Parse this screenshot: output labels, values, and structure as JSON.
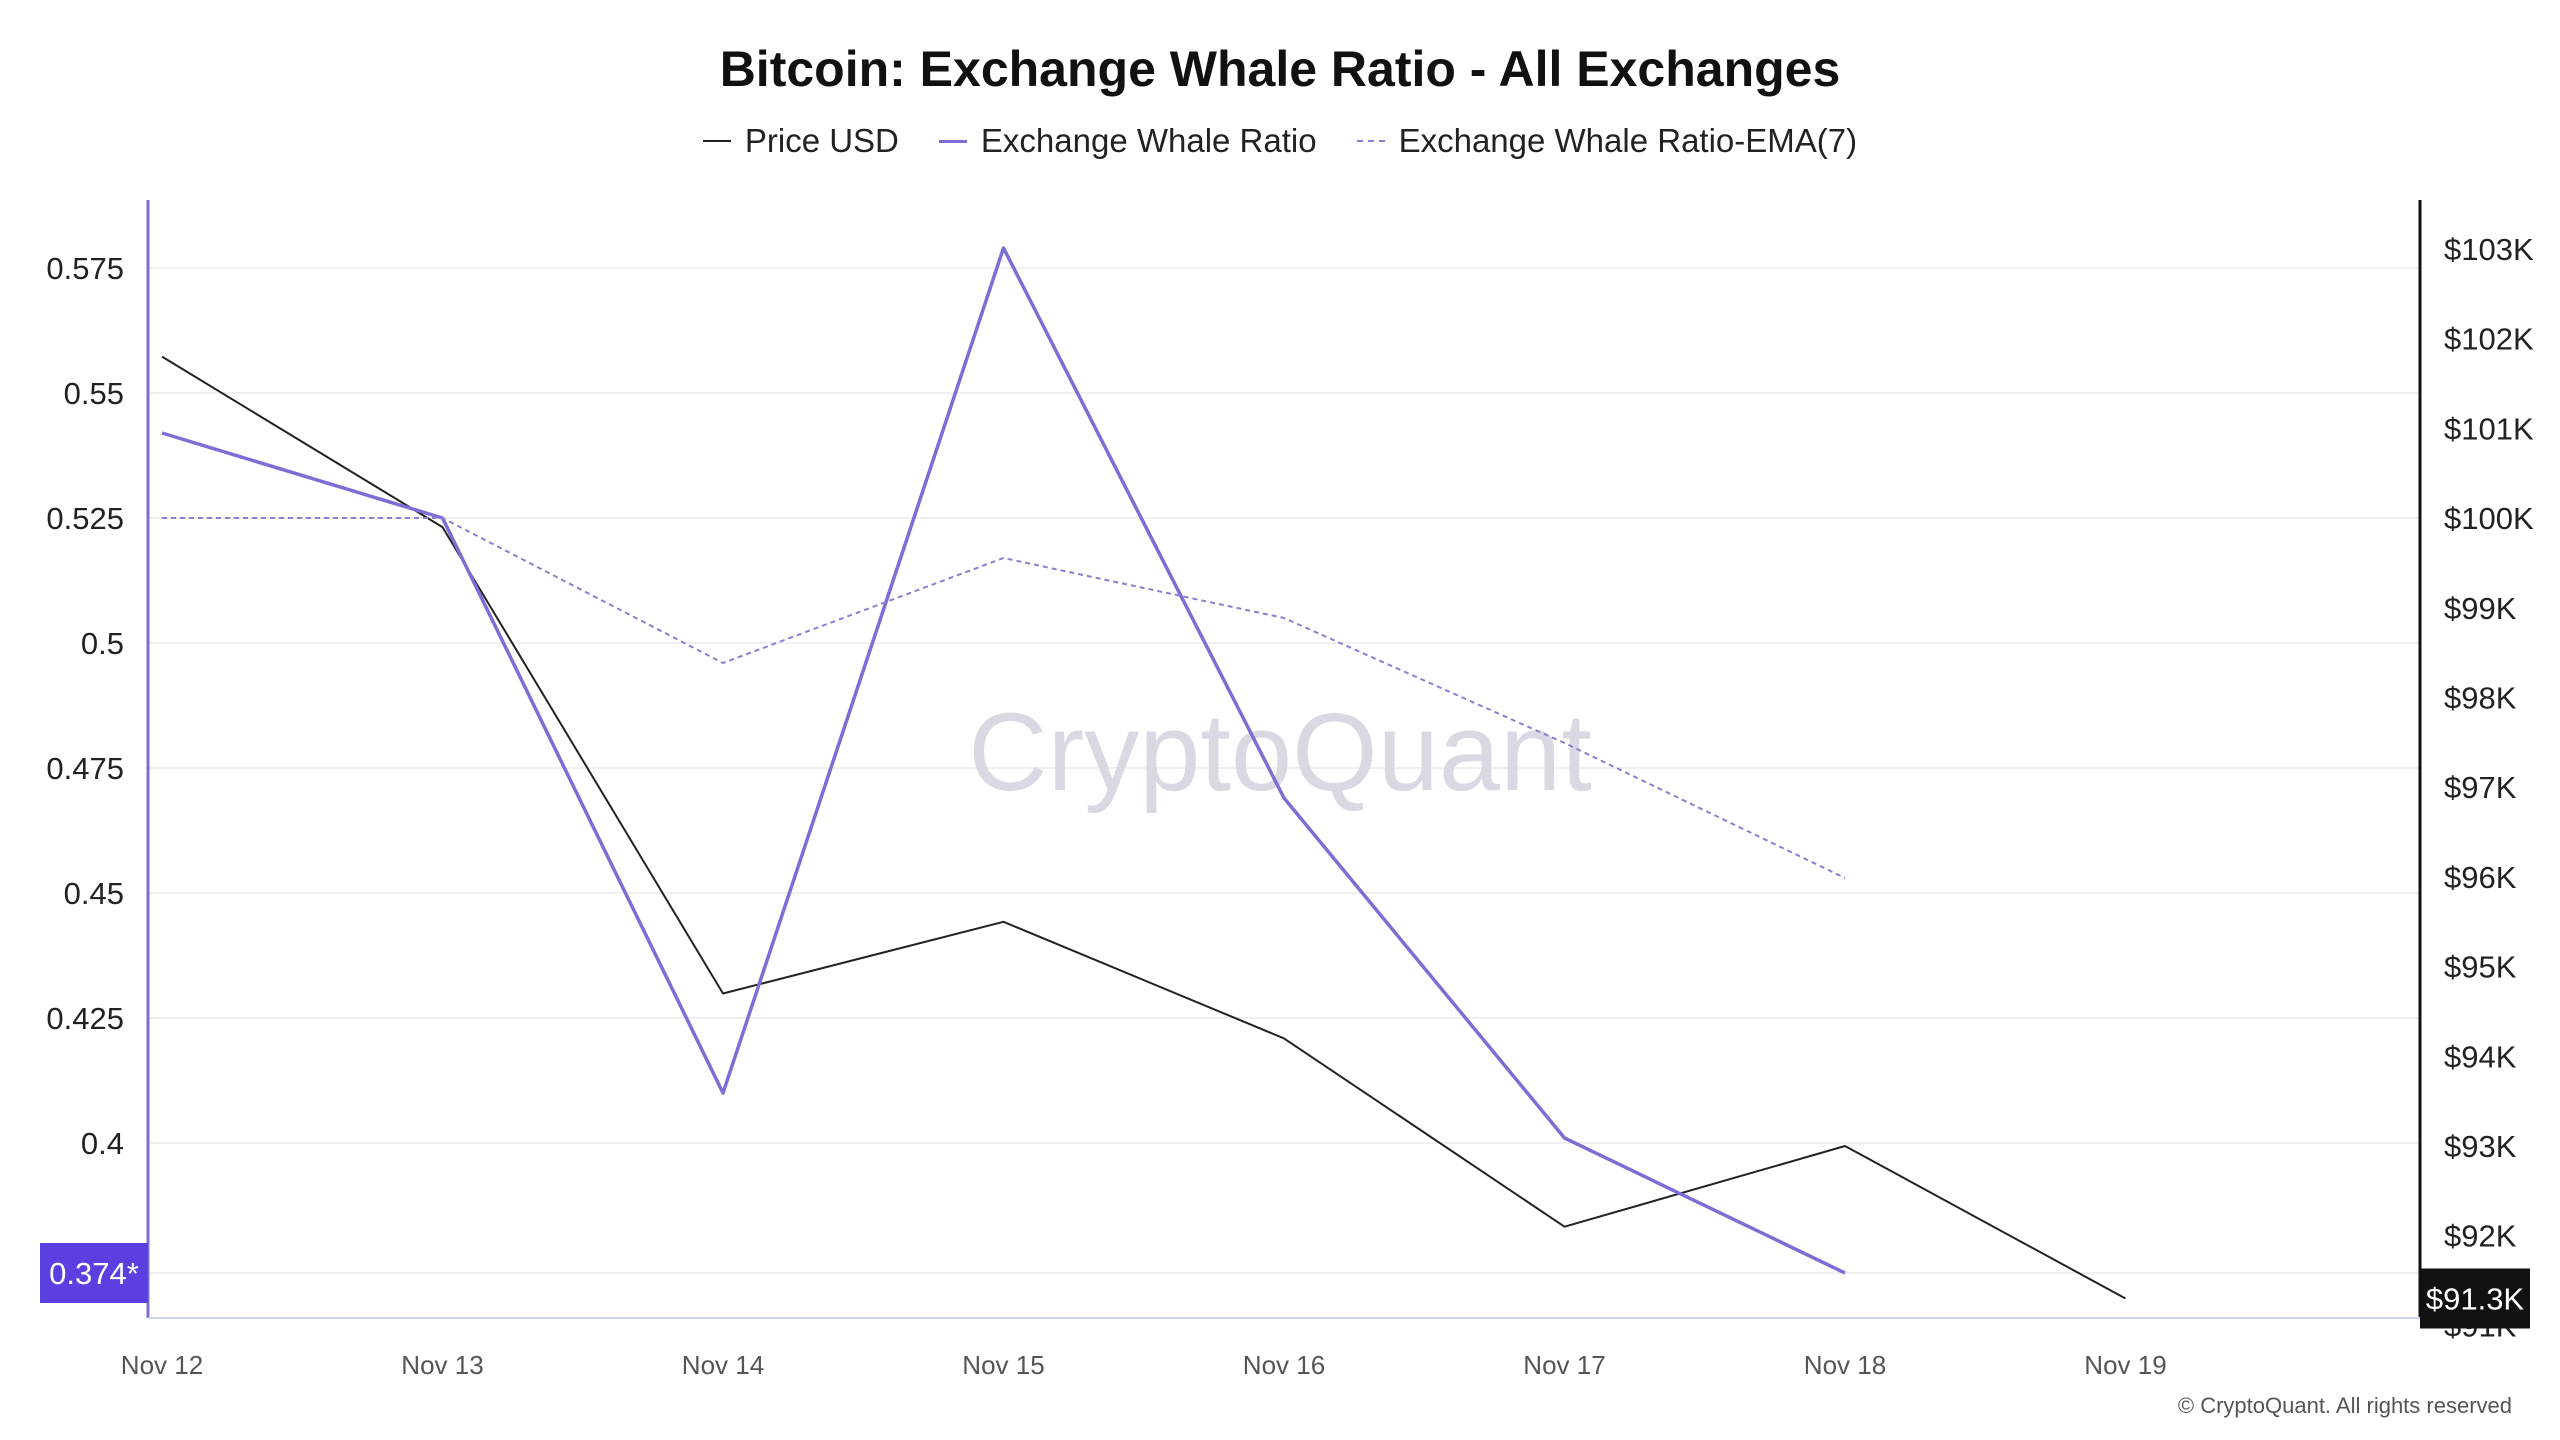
{
  "title": "Bitcoin: Exchange Whale Ratio - All Exchanges",
  "legend": {
    "price": "Price USD",
    "ratio": "Exchange Whale Ratio",
    "ema": "Exchange Whale Ratio-EMA(7)"
  },
  "watermark": "CryptoQuant",
  "copyright": "© CryptoQuant. All rights reserved",
  "colors": {
    "price": "#222222",
    "ratio": "#7b6fd6",
    "ema": "#8a80d0",
    "left_axis": "#7b6fd6",
    "left_badge": "#5b3fe0",
    "right_badge": "#111111"
  },
  "chart_data": {
    "type": "line",
    "x": [
      "Nov 12",
      "Nov 13",
      "Nov 14",
      "Nov 15",
      "Nov 16",
      "Nov 17",
      "Nov 18",
      "Nov 19"
    ],
    "left_axis": {
      "ticks": [
        "0.575",
        "0.55",
        "0.525",
        "0.5",
        "0.475",
        "0.45",
        "0.425",
        "0.4"
      ],
      "tick_values": [
        0.575,
        0.55,
        0.525,
        0.5,
        0.475,
        0.45,
        0.425,
        0.4
      ],
      "current_value_label": "0.374*",
      "current_value": 0.374
    },
    "right_axis": {
      "ticks": [
        "$103K",
        "$102K",
        "$101K",
        "$100K",
        "$99K",
        "$98K",
        "$97K",
        "$96K",
        "$95K",
        "$94K",
        "$93K",
        "$92K",
        "$91K"
      ],
      "tick_values": [
        103000,
        102000,
        101000,
        100000,
        99000,
        98000,
        97000,
        96000,
        95000,
        94000,
        93000,
        92000,
        91000
      ],
      "current_value_label": "$91.3K",
      "current_value": 91300
    },
    "series": [
      {
        "name": "Price USD",
        "axis": "right",
        "values": [
          101800,
          99900,
          94700,
          95500,
          94200,
          92100,
          93000,
          91300
        ]
      },
      {
        "name": "Exchange Whale Ratio",
        "axis": "left",
        "values": [
          0.542,
          0.525,
          0.41,
          0.579,
          0.469,
          0.401,
          0.374,
          null
        ]
      },
      {
        "name": "Exchange Whale Ratio-EMA(7)",
        "axis": "left",
        "values": [
          0.525,
          0.525,
          0.496,
          0.517,
          0.505,
          0.48,
          0.453,
          null
        ]
      }
    ],
    "grid": true
  }
}
